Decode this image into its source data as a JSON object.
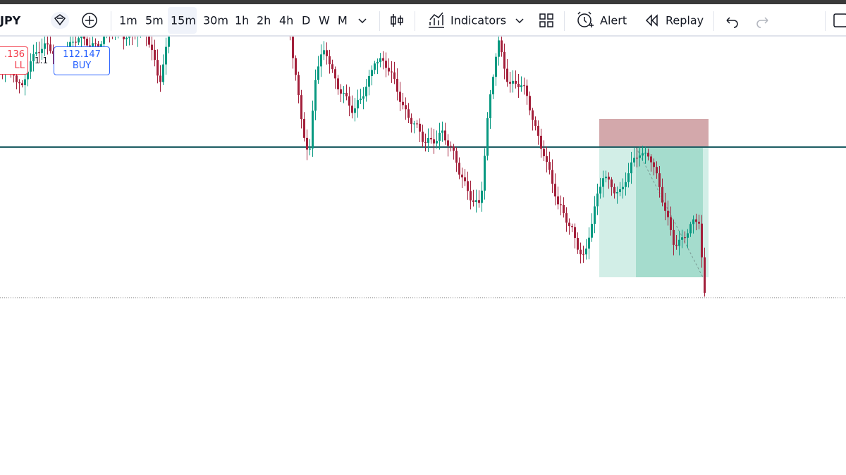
{
  "toolbar": {
    "symbol": "JPY",
    "timeframes": [
      "1m",
      "5m",
      "15m",
      "30m",
      "1h",
      "2h",
      "4h",
      "D",
      "W",
      "M"
    ],
    "indicators": "Indicators",
    "alert": "Alert",
    "replay": "Replay"
  },
  "trade_panel": {
    "sell_price": ".136",
    "sell_label": "LL",
    "spread": "1.1",
    "buy_price": "112.147",
    "buy_label": "BUY"
  }
}
